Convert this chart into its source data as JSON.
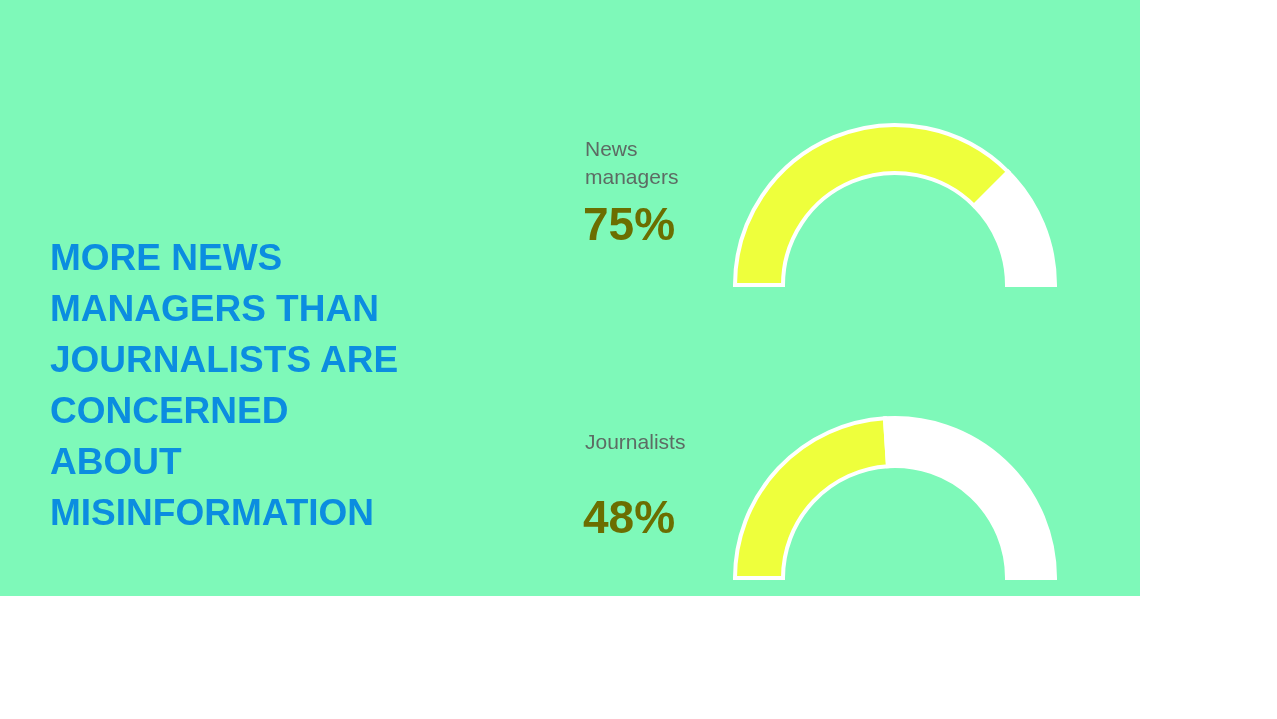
{
  "chart_data": [
    {
      "type": "donut",
      "title": "MORE NEWS\nMANAGERS THAN\nJOURNALISTS ARE\nCONCERNED\nABOUT\nMISINFORMATION",
      "categories": [
        "News managers",
        null
      ],
      "values": [
        75,
        25
      ],
      "colors": [
        "#eeff3c",
        "#ffffff"
      ],
      "value_labels": [
        "75%",
        null
      ],
      "legend": false
    },
    {
      "type": "donut",
      "categories": [
        "Journalists",
        null
      ],
      "values": [
        48,
        52
      ],
      "colors": [
        "#eeff3c",
        "#ffffff"
      ],
      "value_labels": [
        "48%",
        null
      ],
      "legend": false
    }
  ]
}
